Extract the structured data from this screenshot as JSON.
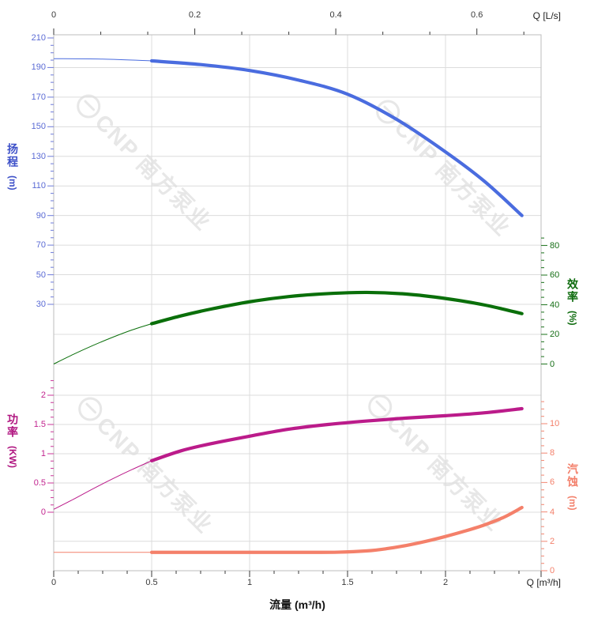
{
  "watermark": {
    "text": "CNP 南方泵业"
  },
  "axes": {
    "flow_top": {
      "unit_label": "Q [L/s]",
      "ticks": [
        "0",
        "0.2",
        "0.4",
        "0.6"
      ]
    },
    "flow_bottom": {
      "unit_label": "Q [m³/h]",
      "title": "流量 (m³/h)",
      "ticks": [
        "0",
        "0.5",
        "1",
        "1.5",
        "2"
      ]
    },
    "head": {
      "title": "扬程",
      "unit": "(m)",
      "color": "#4a6cdf",
      "ticks": [
        "210",
        "190",
        "170",
        "150",
        "130",
        "110",
        "90",
        "70",
        "50",
        "30"
      ]
    },
    "efficiency": {
      "title": "效率",
      "unit": "(%)",
      "color": "#0a6f0a",
      "ticks": [
        "80",
        "60",
        "40",
        "20",
        "0"
      ]
    },
    "power": {
      "title": "功率",
      "unit": "(KW)",
      "color": "#bb1b8a",
      "ticks": [
        "2",
        "1.5",
        "1",
        "0.5",
        "0"
      ]
    },
    "npsh": {
      "title": "汽蚀",
      "unit": "(m)",
      "color": "#f4806a",
      "ticks": [
        "10",
        "8",
        "6",
        "4",
        "2",
        "0"
      ]
    }
  },
  "chart_data": {
    "type": "line",
    "title": "",
    "x_unit_bottom": "m³/h",
    "x_unit_top": "L/s",
    "x_range_m3h": [
      0,
      2.49
    ],
    "x_range_Ls": [
      0,
      0.69
    ],
    "grid": true,
    "duty_range_note": "curves thin below Q=0.5 m³/h, thick from 0.5 to 2.39 m³/h",
    "series": [
      {
        "name": "扬程",
        "unit": "m",
        "axis": "head",
        "color": "#4a6cdf",
        "axis_range": [
          30,
          210
        ],
        "points": [
          [
            0,
            196
          ],
          [
            0.25,
            195.7
          ],
          [
            0.5,
            194.5
          ],
          [
            0.75,
            192
          ],
          [
            1,
            188
          ],
          [
            1.25,
            181.5
          ],
          [
            1.5,
            172
          ],
          [
            1.75,
            155
          ],
          [
            2,
            133
          ],
          [
            2.2,
            113
          ],
          [
            2.39,
            90
          ]
        ]
      },
      {
        "name": "效率",
        "unit": "%",
        "axis": "efficiency",
        "color": "#0a6f0a",
        "axis_range": [
          0,
          80
        ],
        "points": [
          [
            0,
            0
          ],
          [
            0.1,
            6.5
          ],
          [
            0.2,
            12.5
          ],
          [
            0.3,
            18
          ],
          [
            0.4,
            23
          ],
          [
            0.5,
            27.2
          ],
          [
            0.65,
            32.5
          ],
          [
            0.8,
            37
          ],
          [
            1,
            42
          ],
          [
            1.2,
            45.5
          ],
          [
            1.4,
            47.5
          ],
          [
            1.6,
            48.3
          ],
          [
            1.8,
            47.2
          ],
          [
            2,
            44.2
          ],
          [
            2.2,
            39.8
          ],
          [
            2.39,
            34
          ]
        ]
      },
      {
        "name": "功率",
        "unit": "KW",
        "axis": "power",
        "color": "#bb1b8a",
        "axis_range": [
          0,
          2
        ],
        "points": [
          [
            0,
            0.05
          ],
          [
            0.1,
            0.22
          ],
          [
            0.2,
            0.4
          ],
          [
            0.3,
            0.57
          ],
          [
            0.4,
            0.73
          ],
          [
            0.5,
            0.88
          ],
          [
            0.65,
            1.05
          ],
          [
            0.8,
            1.17
          ],
          [
            1,
            1.3
          ],
          [
            1.2,
            1.42
          ],
          [
            1.4,
            1.5
          ],
          [
            1.6,
            1.56
          ],
          [
            1.8,
            1.61
          ],
          [
            2,
            1.65
          ],
          [
            2.2,
            1.7
          ],
          [
            2.39,
            1.77
          ]
        ]
      },
      {
        "name": "汽蚀",
        "unit": "m",
        "axis": "npsh",
        "color": "#f4806a",
        "axis_range": [
          0,
          10
        ],
        "points": [
          [
            0,
            1.25
          ],
          [
            0.5,
            1.25
          ],
          [
            1,
            1.25
          ],
          [
            1.3,
            1.25
          ],
          [
            1.45,
            1.26
          ],
          [
            1.6,
            1.35
          ],
          [
            1.7,
            1.5
          ],
          [
            1.8,
            1.72
          ],
          [
            1.9,
            2.0
          ],
          [
            2,
            2.33
          ],
          [
            2.1,
            2.7
          ],
          [
            2.2,
            3.12
          ],
          [
            2.3,
            3.65
          ],
          [
            2.39,
            4.3
          ]
        ]
      }
    ]
  }
}
